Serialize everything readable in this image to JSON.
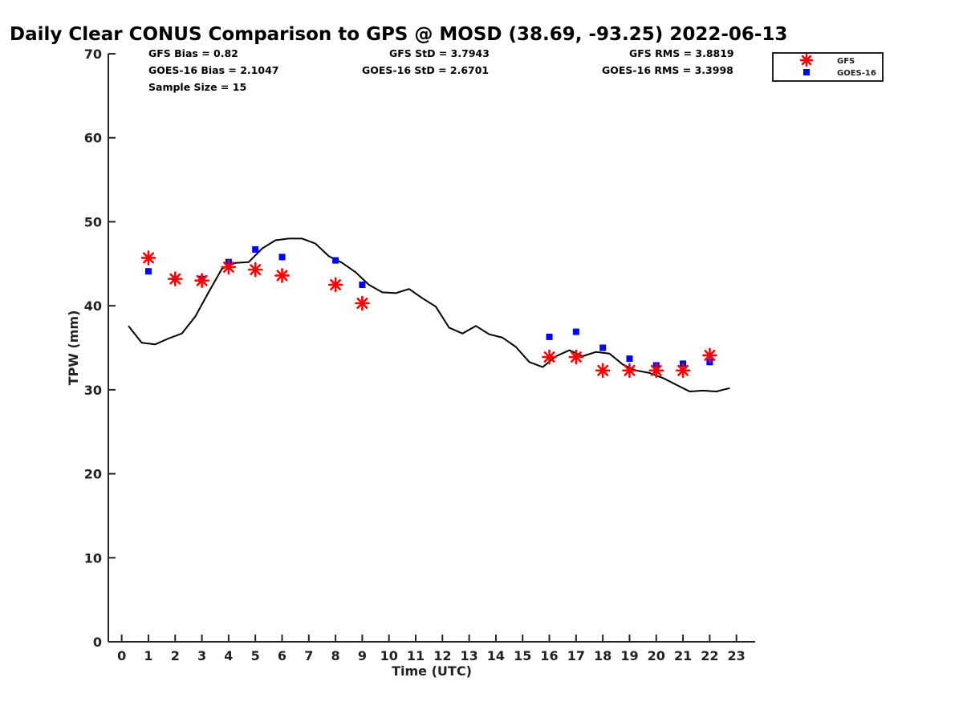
{
  "title": "Daily Clear CONUS Comparison to GPS @ MOSD (38.69, -93.25) 2022-06-13",
  "stats": {
    "gfs_bias": "GFS Bias = 0.82",
    "goes_bias": "GOES-16 Bias = 2.1047",
    "sample_size": "Sample Size = 15",
    "gfs_std": "GFS StD = 3.7943",
    "goes_std": "GOES-16 StD = 2.6701",
    "gfs_rms": "GFS RMS = 3.8819",
    "goes_rms": "GOES-16 RMS = 3.3998"
  },
  "colors": {
    "gfs": "#ff0000",
    "goes": "#0000ff",
    "gps": "#000000"
  },
  "chart_data": {
    "type": "line+scatter",
    "title": "Daily Clear CONUS Comparison to GPS @ MOSD (38.69, -93.25) 2022-06-13",
    "xlabel": "Time (UTC)",
    "ylabel": "TPW (mm)",
    "xlim": [
      -0.5,
      23.7
    ],
    "ylim": [
      0,
      70
    ],
    "xticks": [
      0,
      1,
      2,
      3,
      4,
      5,
      6,
      7,
      8,
      9,
      10,
      11,
      12,
      13,
      14,
      15,
      16,
      17,
      18,
      19,
      20,
      21,
      22,
      23
    ],
    "yticks": [
      0,
      10,
      20,
      30,
      40,
      50,
      60,
      70
    ],
    "legend": {
      "position": "top-right-outside",
      "entries": [
        "GFS",
        "GOES-16"
      ]
    },
    "gps_line": {
      "name": "GPS",
      "x": [
        0.25,
        0.75,
        1.25,
        1.75,
        2.25,
        2.75,
        3.25,
        3.75,
        4.25,
        4.75,
        5.25,
        5.75,
        6.25,
        6.75,
        7.25,
        7.75,
        8.25,
        8.75,
        9.25,
        9.75,
        10.25,
        10.75,
        11.25,
        11.75,
        12.25,
        12.75,
        13.25,
        13.75,
        14.25,
        14.75,
        15.25,
        15.75,
        16.25,
        16.75,
        17.25,
        17.75,
        18.25,
        18.75,
        19.25,
        19.75,
        20.25,
        20.75,
        21.25,
        21.75,
        22.25,
        22.75
      ],
      "y": [
        37.6,
        35.6,
        35.4,
        36.1,
        36.7,
        38.7,
        41.6,
        44.4,
        45.1,
        45.2,
        46.8,
        47.8,
        48.0,
        48.0,
        47.4,
        45.9,
        45.1,
        44.0,
        42.5,
        41.6,
        41.5,
        42.0,
        40.9,
        39.9,
        37.4,
        36.7,
        37.6,
        36.6,
        36.2,
        35.1,
        33.3,
        32.7,
        34.0,
        34.7,
        34.0,
        34.5,
        34.3,
        33.0,
        32.3,
        32.0,
        31.4,
        30.6,
        29.8,
        29.9,
        29.8,
        30.2
      ]
    },
    "series": [
      {
        "name": "GFS",
        "marker": "star",
        "x": [
          1,
          2,
          3,
          4,
          5,
          6,
          8,
          9,
          16,
          17,
          18,
          19,
          20,
          21,
          22
        ],
        "values": [
          45.7,
          43.2,
          43.0,
          44.6,
          44.3,
          43.6,
          42.5,
          40.3,
          33.9,
          33.9,
          32.3,
          32.3,
          32.3,
          32.3,
          34.1
        ]
      },
      {
        "name": "GOES-16",
        "marker": "square",
        "x": [
          1,
          2,
          3,
          4,
          5,
          6,
          8,
          9,
          16,
          17,
          18,
          19,
          20,
          21,
          22
        ],
        "values": [
          44.1,
          43.2,
          43.2,
          45.2,
          46.7,
          45.8,
          45.4,
          42.5,
          36.3,
          36.9,
          35.0,
          33.7,
          32.9,
          33.1,
          33.3
        ]
      }
    ]
  }
}
